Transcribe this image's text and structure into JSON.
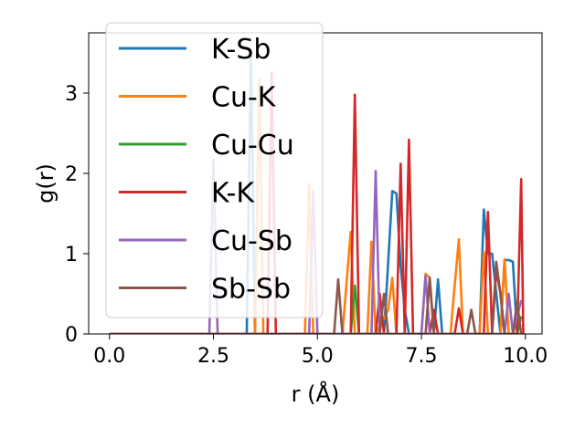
{
  "chart_data": {
    "type": "line",
    "xlabel": "r (Å)",
    "ylabel": "g(r)",
    "xlim": [
      -0.5,
      10.4
    ],
    "ylim": [
      0,
      3.75
    ],
    "xticks": [
      0.0,
      2.5,
      5.0,
      7.5,
      10.0
    ],
    "xtick_labels": [
      "0.0",
      "2.5",
      "5.0",
      "7.5",
      "10.0"
    ],
    "yticks": [
      0,
      1,
      2,
      3
    ],
    "ytick_labels": [
      "0",
      "1",
      "2",
      "3"
    ],
    "grid": false,
    "legend_position": "upper-left",
    "series": [
      {
        "name": "K-Sb",
        "color": "#1f77b4",
        "points": [
          [
            0,
            0
          ],
          [
            3.3,
            0
          ],
          [
            3.4,
            3.5
          ],
          [
            3.5,
            0
          ],
          [
            5.9,
            0
          ],
          [
            6.6,
            0
          ],
          [
            6.8,
            1.78
          ],
          [
            6.9,
            1.75
          ],
          [
            7.0,
            0.85
          ],
          [
            7.1,
            0.3
          ],
          [
            7.2,
            0
          ],
          [
            7.8,
            0
          ],
          [
            7.9,
            0.68
          ],
          [
            8.0,
            0
          ],
          [
            8.9,
            0
          ],
          [
            9.0,
            1.55
          ],
          [
            9.1,
            1.0
          ],
          [
            9.2,
            1.0
          ],
          [
            9.4,
            0
          ],
          [
            9.5,
            0.92
          ],
          [
            9.6,
            0.92
          ],
          [
            9.7,
            0.9
          ],
          [
            9.8,
            0
          ],
          [
            9.9,
            0
          ]
        ]
      },
      {
        "name": "Cu-K",
        "color": "#ff7f0e",
        "points": [
          [
            0,
            0
          ],
          [
            3.5,
            0
          ],
          [
            3.6,
            3.18
          ],
          [
            3.7,
            0
          ],
          [
            4.7,
            0
          ],
          [
            4.8,
            1.87
          ],
          [
            4.9,
            0
          ],
          [
            5.6,
            0
          ],
          [
            5.8,
            1.27
          ],
          [
            5.9,
            0
          ],
          [
            6.2,
            0
          ],
          [
            6.3,
            1.15
          ],
          [
            6.4,
            0
          ],
          [
            6.7,
            0.3
          ],
          [
            6.8,
            0.7
          ],
          [
            6.9,
            0
          ],
          [
            7.5,
            0
          ],
          [
            7.6,
            0.75
          ],
          [
            7.7,
            0.7
          ],
          [
            7.8,
            0
          ],
          [
            8.2,
            0
          ],
          [
            8.3,
            0.6
          ],
          [
            8.4,
            1.18
          ],
          [
            8.5,
            0
          ],
          [
            8.9,
            0
          ],
          [
            9.0,
            1.02
          ],
          [
            9.1,
            0
          ],
          [
            9.4,
            0
          ],
          [
            9.5,
            0.93
          ],
          [
            9.6,
            0
          ],
          [
            9.9,
            0
          ]
        ]
      },
      {
        "name": "Cu-Cu",
        "color": "#2ca02c",
        "points": [
          [
            0,
            0
          ],
          [
            5.8,
            0
          ],
          [
            5.9,
            0.6
          ],
          [
            6.0,
            0
          ],
          [
            9.8,
            0
          ],
          [
            9.9,
            0.22
          ]
        ]
      },
      {
        "name": "K-K",
        "color": "#d62728",
        "points": [
          [
            0,
            0
          ],
          [
            3.8,
            0
          ],
          [
            3.9,
            3.25
          ],
          [
            4.0,
            0
          ],
          [
            5.8,
            0
          ],
          [
            5.9,
            2.98
          ],
          [
            6.0,
            0
          ],
          [
            6.4,
            0
          ],
          [
            6.5,
            0.5
          ],
          [
            6.6,
            0
          ],
          [
            6.9,
            0
          ],
          [
            7.0,
            2.12
          ],
          [
            7.1,
            0
          ],
          [
            7.2,
            2.42
          ],
          [
            7.3,
            0
          ],
          [
            7.7,
            0
          ],
          [
            7.8,
            0.3
          ],
          [
            7.9,
            0
          ],
          [
            8.3,
            0
          ],
          [
            8.4,
            0.32
          ],
          [
            8.5,
            0
          ],
          [
            9.0,
            0
          ],
          [
            9.1,
            1.52
          ],
          [
            9.2,
            0
          ],
          [
            9.3,
            0.8
          ],
          [
            9.4,
            0.5
          ],
          [
            9.5,
            0
          ],
          [
            9.8,
            0
          ],
          [
            9.9,
            1.93
          ],
          [
            9.95,
            0
          ]
        ]
      },
      {
        "name": "Cu-Sb",
        "color": "#9467bd",
        "points": [
          [
            0,
            0
          ],
          [
            2.4,
            0
          ],
          [
            2.5,
            2.17
          ],
          [
            2.6,
            0
          ],
          [
            4.8,
            0
          ],
          [
            4.9,
            1.78
          ],
          [
            5.0,
            0
          ],
          [
            6.3,
            0
          ],
          [
            6.4,
            2.03
          ],
          [
            6.5,
            0
          ],
          [
            7.5,
            0
          ],
          [
            7.6,
            0.72
          ],
          [
            7.7,
            0
          ],
          [
            9.5,
            0
          ],
          [
            9.6,
            0.5
          ],
          [
            9.7,
            0
          ],
          [
            9.9,
            0.42
          ]
        ]
      },
      {
        "name": "Sb-Sb",
        "color": "#8c564b",
        "points": [
          [
            0,
            0
          ],
          [
            5.4,
            0
          ],
          [
            5.5,
            0.68
          ],
          [
            5.6,
            0
          ],
          [
            6.5,
            0
          ],
          [
            6.6,
            0.5
          ],
          [
            6.7,
            0
          ],
          [
            7.6,
            0
          ],
          [
            7.7,
            0.7
          ],
          [
            7.8,
            0
          ],
          [
            8.6,
            0
          ],
          [
            8.7,
            0.3
          ],
          [
            8.8,
            0
          ],
          [
            9.2,
            0
          ],
          [
            9.3,
            0.9
          ],
          [
            9.4,
            0.5
          ],
          [
            9.5,
            0
          ],
          [
            9.7,
            0
          ],
          [
            9.8,
            0.4
          ],
          [
            9.9,
            0
          ]
        ]
      }
    ]
  }
}
